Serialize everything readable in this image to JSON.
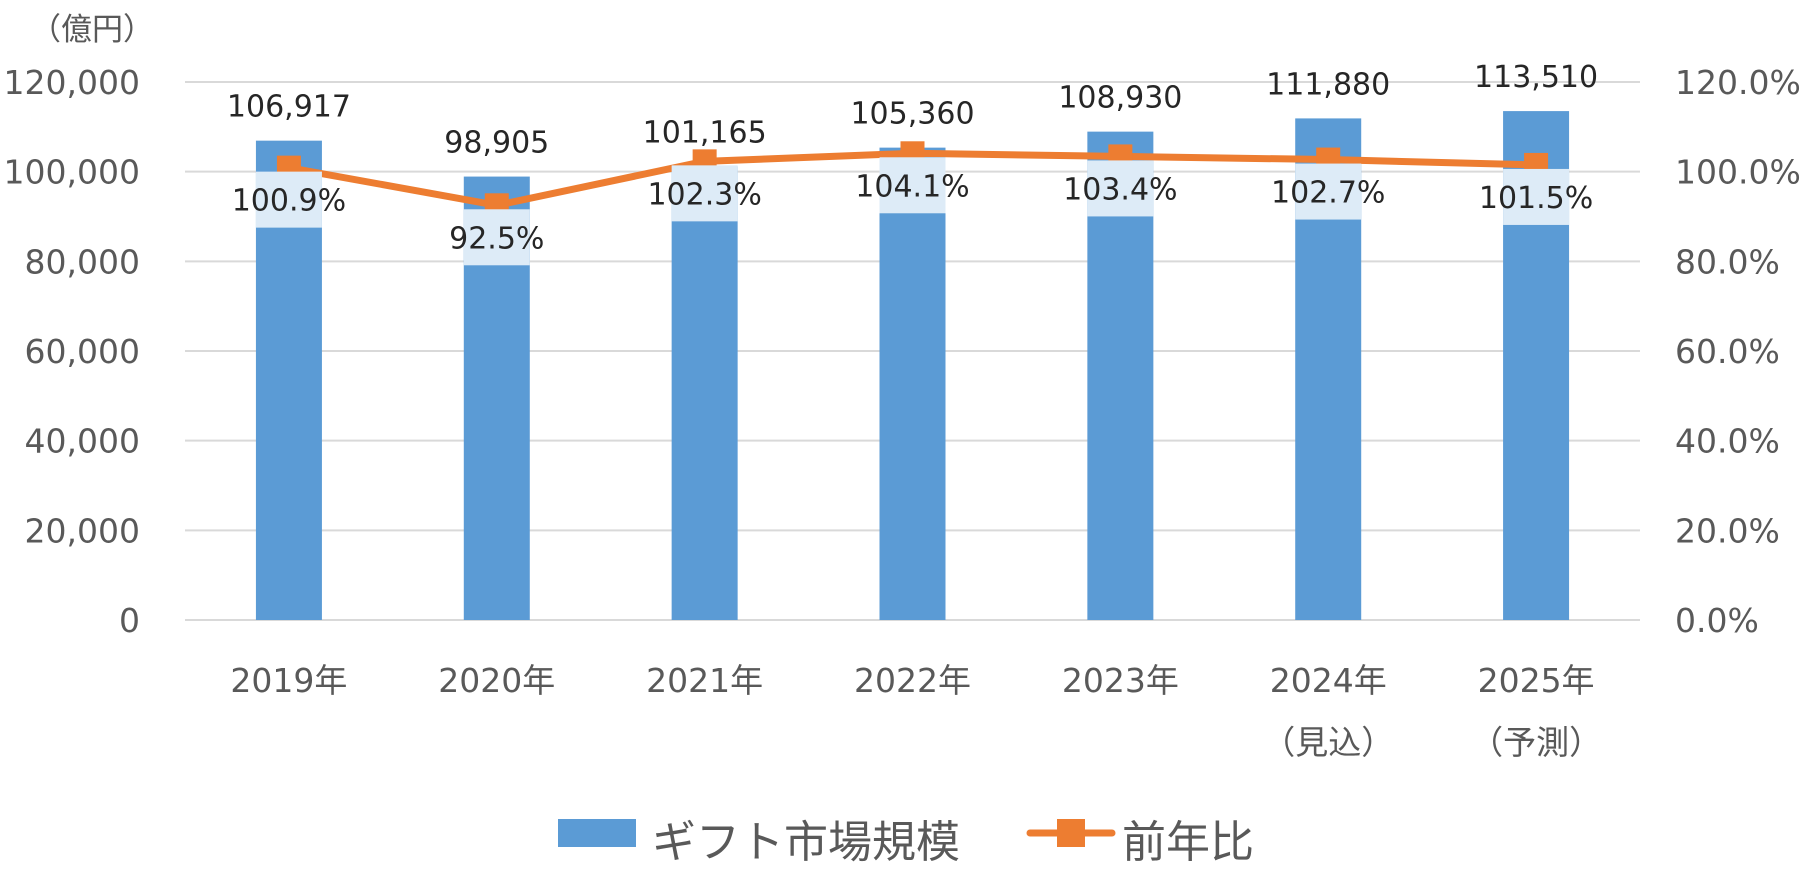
{
  "chart_data": {
    "type": "bar",
    "unit_label": "（億円）",
    "categories": [
      [
        "2019年"
      ],
      [
        "2020年"
      ],
      [
        "2021年"
      ],
      [
        "2022年"
      ],
      [
        "2023年"
      ],
      [
        "2024年",
        "（見込）"
      ],
      [
        "2025年",
        "（予測）"
      ]
    ],
    "series": [
      {
        "name": "ギフト市場規模",
        "type": "bar",
        "axis": "left",
        "color": "#5B9BD5",
        "values": [
          106917,
          98905,
          101165,
          105360,
          108930,
          111880,
          113510
        ],
        "labels": [
          "106,917",
          "98,905",
          "101,165",
          "105,360",
          "108,930",
          "111,880",
          "113,510"
        ]
      },
      {
        "name": "前年比",
        "type": "line",
        "axis": "right",
        "color": "#ED7D31",
        "values": [
          100.9,
          92.5,
          102.3,
          104.1,
          103.4,
          102.7,
          101.5
        ],
        "labels": [
          "100.9%",
          "92.5%",
          "102.3%",
          "104.1%",
          "103.4%",
          "102.7%",
          "101.5%"
        ]
      }
    ],
    "y_left": {
      "min": 0,
      "max": 120000,
      "ticks": [
        0,
        20000,
        40000,
        60000,
        80000,
        100000,
        120000
      ],
      "tick_labels": [
        "0",
        "20,000",
        "40,000",
        "60,000",
        "80,000",
        "100,000",
        "120,000"
      ]
    },
    "y_right": {
      "min": 0,
      "max": 120,
      "ticks": [
        0,
        20,
        40,
        60,
        80,
        100,
        120
      ],
      "tick_labels": [
        "0.0%",
        "20.0%",
        "40.0%",
        "60.0%",
        "80.0%",
        "100.0%",
        "120.0%"
      ]
    },
    "grid": true,
    "legend_position": "bottom-center",
    "label_box_color": "#DDEBF7",
    "grid_color": "#D9D9D9"
  }
}
